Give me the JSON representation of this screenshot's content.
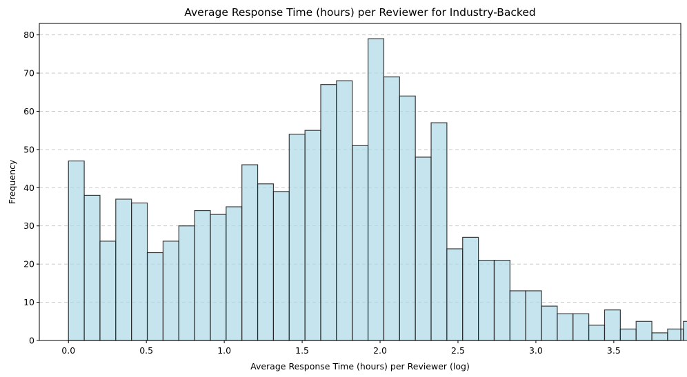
{
  "chart_data": {
    "type": "bar",
    "title": "Average Response Time (hours) per Reviewer for Industry-Backed",
    "xlabel": "Average Response Time (hours) per Reviewer (log)",
    "ylabel": "Frequency",
    "bin_start": 0.0,
    "bin_width": 0.1012,
    "values": [
      47,
      38,
      26,
      37,
      36,
      23,
      26,
      30,
      34,
      33,
      35,
      46,
      41,
      39,
      54,
      55,
      67,
      68,
      51,
      79,
      69,
      64,
      48,
      57,
      24,
      27,
      21,
      21,
      13,
      13,
      9,
      7,
      7,
      4,
      8,
      3,
      5,
      2,
      3,
      5
    ],
    "xlim": [
      -0.187,
      3.93
    ],
    "ylim": [
      0,
      83
    ],
    "xticks": [
      0.0,
      0.5,
      1.0,
      1.5,
      2.0,
      2.5,
      3.0,
      3.5
    ],
    "xtick_labels": [
      "0.0",
      "0.5",
      "1.0",
      "1.5",
      "2.0",
      "2.5",
      "3.0",
      "3.5"
    ],
    "yticks": [
      0,
      10,
      20,
      30,
      40,
      50,
      60,
      70,
      80
    ],
    "ytick_labels": [
      "0",
      "10",
      "20",
      "30",
      "40",
      "50",
      "60",
      "70",
      "80"
    ],
    "grid": "y-axis dashed",
    "colors": {
      "bar_fill": "#add8e6",
      "bar_edge": "#1a1a1a"
    }
  }
}
